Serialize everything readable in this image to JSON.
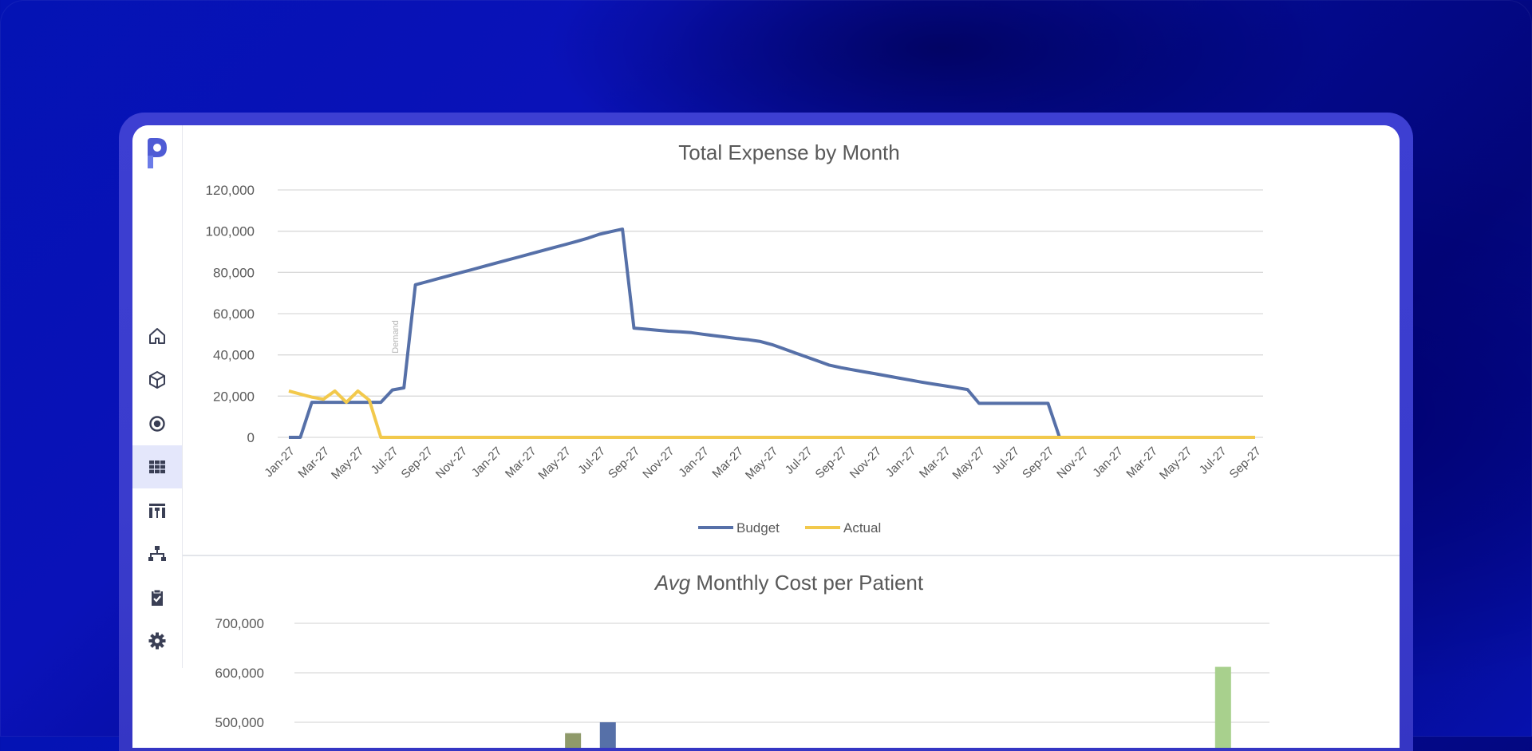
{
  "sidebar": {
    "items": [
      {
        "icon": "home-icon",
        "active": false
      },
      {
        "icon": "cube-icon",
        "active": false
      },
      {
        "icon": "target-icon",
        "active": false
      },
      {
        "icon": "grid-icon",
        "active": true
      },
      {
        "icon": "columns-icon",
        "active": false
      },
      {
        "icon": "hierarchy-icon",
        "active": false
      },
      {
        "icon": "clipboard-check-icon",
        "active": false
      },
      {
        "icon": "gear-icon",
        "active": false
      }
    ],
    "logo_icon": "p-logo-icon"
  },
  "colors": {
    "budget": "#5670a8",
    "actual": "#f2c94c",
    "bar_blue": "#5670a8",
    "bar_olive": "#8f9a6a",
    "bar_green": "#a8d08d",
    "active_nav": "#e4e7fb"
  },
  "chart_data": [
    {
      "type": "line",
      "title": "Total Expense by Month",
      "annotation": "Demand",
      "ylim": [
        0,
        120000
      ],
      "yticks": [
        "120,000",
        "100,000",
        "80,000",
        "60,000",
        "40,000",
        "20,000",
        "0"
      ],
      "xtick_labels": [
        "Jan-27",
        "Mar-27",
        "May-27",
        "Jul-27",
        "Sep-27",
        "Nov-27",
        "Jan-27",
        "Mar-27",
        "May-27",
        "Jul-27",
        "Sep-27",
        "Nov-27",
        "Jan-27",
        "Mar-27",
        "May-27",
        "Jul-27",
        "Sep-27",
        "Nov-27",
        "Jan-27",
        "Mar-27",
        "May-27",
        "Jul-27",
        "Sep-27",
        "Nov-27",
        "Jan-27",
        "Mar-27",
        "May-27",
        "Jul-27",
        "Sep-27"
      ],
      "grid": true,
      "legend": "bottom",
      "series": [
        {
          "name": "Budget",
          "values": [
            0,
            0,
            17000,
            17000,
            17000,
            17000,
            17000,
            17000,
            17000,
            23000,
            24000,
            74000,
            75500,
            77000,
            78500,
            80000,
            81500,
            83000,
            84500,
            86000,
            87500,
            89000,
            90500,
            92000,
            93500,
            95000,
            96600,
            98500,
            99800,
            101000,
            53000,
            52500,
            52000,
            51500,
            51200,
            50800,
            50000,
            49300,
            48600,
            47900,
            47300,
            46500,
            45000,
            43000,
            41000,
            39000,
            37000,
            35000,
            33800,
            32800,
            31800,
            30800,
            29800,
            28800,
            27800,
            26800,
            25900,
            25000,
            24100,
            23200,
            16500,
            16500,
            16500,
            16500,
            16500,
            16500,
            16500,
            0,
            0,
            0,
            0,
            0,
            0,
            0,
            0,
            0,
            0,
            0,
            0,
            0,
            0,
            0,
            0,
            0,
            0
          ]
        },
        {
          "name": "Actual",
          "values": [
            22500,
            21000,
            19500,
            18500,
            22500,
            17000,
            22500,
            18000,
            0,
            0,
            0,
            0,
            0,
            0,
            0,
            0,
            0,
            0,
            0,
            0,
            0,
            0,
            0,
            0,
            0,
            0,
            0,
            0,
            0,
            0,
            0,
            0,
            0,
            0,
            0,
            0,
            0,
            0,
            0,
            0,
            0,
            0,
            0,
            0,
            0,
            0,
            0,
            0,
            0,
            0,
            0,
            0,
            0,
            0,
            0,
            0,
            0,
            0,
            0,
            0,
            0,
            0,
            0,
            0,
            0,
            0,
            0,
            0,
            0,
            0,
            0,
            0,
            0,
            0,
            0,
            0,
            0,
            0,
            0,
            0,
            0,
            0,
            0,
            0,
            0
          ]
        }
      ]
    },
    {
      "type": "bar",
      "title_emphasis": "Avg",
      "title": " Monthly Cost per Patient",
      "ylim": [
        400000,
        700000
      ],
      "yticks": [
        "700,000",
        "600,000",
        "500,000"
      ],
      "grid": true,
      "bars": [
        {
          "position": 24,
          "value": 478000,
          "color": "#8f9a6a"
        },
        {
          "position": 27,
          "value": 500000,
          "color": "#5670a8"
        },
        {
          "position": 80,
          "value": 612000,
          "color": "#a8d08d"
        }
      ]
    }
  ]
}
